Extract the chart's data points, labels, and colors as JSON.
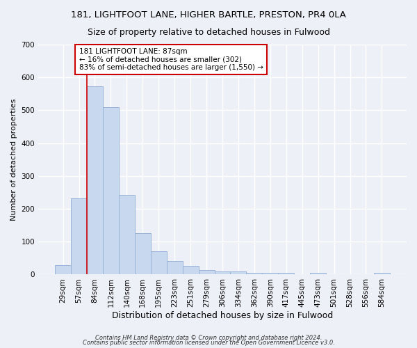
{
  "title1": "181, LIGHTFOOT LANE, HIGHER BARTLE, PRESTON, PR4 0LA",
  "title2": "Size of property relative to detached houses in Fulwood",
  "xlabel": "Distribution of detached houses by size in Fulwood",
  "ylabel": "Number of detached properties",
  "footer1": "Contains HM Land Registry data © Crown copyright and database right 2024.",
  "footer2": "Contains public sector information licensed under the Open Government Licence v3.0.",
  "categories": [
    "29sqm",
    "57sqm",
    "84sqm",
    "112sqm",
    "140sqm",
    "168sqm",
    "195sqm",
    "223sqm",
    "251sqm",
    "279sqm",
    "306sqm",
    "334sqm",
    "362sqm",
    "390sqm",
    "417sqm",
    "445sqm",
    "473sqm",
    "501sqm",
    "528sqm",
    "556sqm",
    "584sqm"
  ],
  "values": [
    28,
    232,
    572,
    510,
    242,
    127,
    70,
    42,
    27,
    13,
    10,
    10,
    5,
    5,
    5,
    2,
    5,
    0,
    0,
    0,
    5
  ],
  "bar_color": "#c8d8ee",
  "bar_edge_color": "#9ab4d8",
  "vline_color": "#cc0000",
  "annotation_text": "181 LIGHTFOOT LANE: 87sqm\n← 16% of detached houses are smaller (302)\n83% of semi-detached houses are larger (1,550) →",
  "annotation_box_facecolor": "white",
  "annotation_box_edgecolor": "#cc0000",
  "ylim": [
    0,
    700
  ],
  "yticks": [
    0,
    100,
    200,
    300,
    400,
    500,
    600,
    700
  ],
  "bg_color": "#edf1f7",
  "grid_color": "white",
  "title1_fontsize": 9.5,
  "title2_fontsize": 9,
  "xlabel_fontsize": 9,
  "ylabel_fontsize": 8,
  "tick_fontsize": 7.5,
  "annot_fontsize": 7.5,
  "footer_fontsize": 6
}
